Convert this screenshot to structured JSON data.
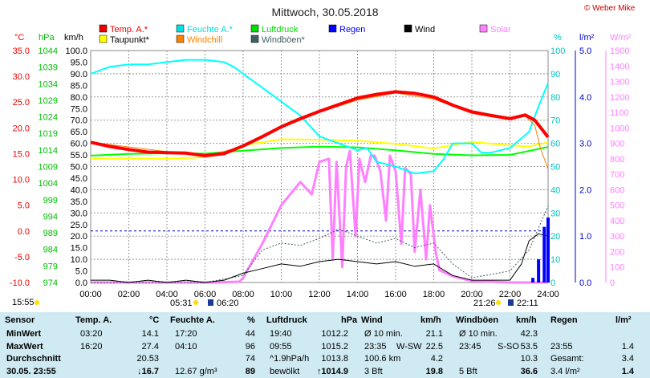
{
  "title": "Mittwoch, 30.05.2018",
  "copyright": "© Weber Mike",
  "colors": {
    "temp": "#ff0000",
    "taupunkt": "#ffff00",
    "feuchte": "#00ffff",
    "windchill": "#ff8000",
    "luftdruck": "#00ff00",
    "windboeen": "#406060",
    "regen": "#0000ff",
    "wind": "#000000",
    "solar": "#ff80ff"
  },
  "legend": [
    {
      "label": "Temp. A.*",
      "color": "#ee0000"
    },
    {
      "label": "Taupunkt*",
      "color": "#ffff00"
    },
    {
      "label": "Feuchte A.*",
      "color": "#00e0e0"
    },
    {
      "label": "Windchill",
      "color": "#ff8000"
    },
    {
      "label": "Luftdruck",
      "color": "#00dd00"
    },
    {
      "label": "Windböen*",
      "color": "#406060"
    },
    {
      "label": "Regen",
      "color": "#0000ff"
    },
    {
      "label": "Wind",
      "color": "#000000"
    },
    {
      "label": "Solar",
      "color": "#ff80ff"
    }
  ],
  "units": {
    "temp": "°C",
    "pressure": "hPa",
    "wind": "km/h",
    "humidity": "%",
    "rain": "l/m²",
    "solar": "W/m²"
  },
  "chart_data": {
    "type": "line",
    "x_ticks": [
      "00:00",
      "02:00",
      "04:00",
      "06:00",
      "08:00",
      "10:00",
      "12:00",
      "14:00",
      "16:00",
      "18:00",
      "20:00",
      "22:00",
      "24:00"
    ],
    "axes": {
      "temp": {
        "ticks": [
          "35.0",
          "30.0",
          "25.0",
          "20.0",
          "15.0",
          "10.0",
          "5.0",
          "0.0",
          "-5.0",
          "-10.0"
        ],
        "lim": [
          -10,
          35
        ]
      },
      "pressure": {
        "ticks": [
          "1044",
          "1039",
          "1034",
          "1029",
          "1024",
          "1019",
          "1014",
          "1009",
          "1004",
          "999",
          "994",
          "989",
          "984",
          "979",
          "974"
        ],
        "lim": [
          974,
          1044
        ]
      },
      "wind": {
        "ticks": [
          "100.0",
          "95.0",
          "90.0",
          "85.0",
          "80.0",
          "75.0",
          "70.0",
          "65.0",
          "60.0",
          "55.0",
          "50.0",
          "45.0",
          "40.0",
          "35.0",
          "30.0",
          "25.0",
          "20.0",
          "15.0",
          "10.0",
          "5.0",
          "0.0"
        ],
        "lim": [
          0,
          100
        ]
      },
      "humidity": {
        "ticks": [
          "100",
          "90",
          "80",
          "70",
          "60",
          "50",
          "40",
          "30",
          "20",
          "10",
          "0"
        ],
        "lim": [
          0,
          100
        ]
      },
      "rain": {
        "ticks": [
          "5.0",
          "4.0",
          "3.0",
          "2.0",
          "1.0",
          "0.0"
        ],
        "lim": [
          0,
          5
        ]
      },
      "solar": {
        "ticks": [
          "1500",
          "1400",
          "1300",
          "1200",
          "1100",
          "1000",
          "900",
          "800",
          "700",
          "600",
          "500",
          "400",
          "300",
          "200",
          "100",
          "0"
        ],
        "lim": [
          0,
          1500
        ]
      }
    },
    "series": [
      {
        "name": "Temp. A.*",
        "key": "temp",
        "axis": "temp",
        "width": 4,
        "points": [
          [
            0,
            17.2
          ],
          [
            1,
            16.4
          ],
          [
            2,
            15.8
          ],
          [
            3,
            15.3
          ],
          [
            4,
            15.2
          ],
          [
            5,
            15.1
          ],
          [
            6,
            14.6
          ],
          [
            7,
            15.0
          ],
          [
            8,
            16.5
          ],
          [
            9,
            18.3
          ],
          [
            10,
            20.2
          ],
          [
            11,
            21.8
          ],
          [
            12,
            23.2
          ],
          [
            13,
            24.5
          ],
          [
            14,
            25.8
          ],
          [
            15,
            26.5
          ],
          [
            16,
            27.0
          ],
          [
            17,
            26.7
          ],
          [
            18,
            26.0
          ],
          [
            19,
            24.4
          ],
          [
            20,
            23.1
          ],
          [
            21,
            22.4
          ],
          [
            22,
            21.8
          ],
          [
            22.8,
            22.5
          ],
          [
            23.3,
            21.5
          ],
          [
            24,
            18.2
          ]
        ]
      },
      {
        "name": "Taupunkt*",
        "key": "taupunkt",
        "axis": "temp",
        "width": 2,
        "points": [
          [
            0,
            14.0
          ],
          [
            2,
            14.1
          ],
          [
            4,
            14.0
          ],
          [
            6,
            14.3
          ],
          [
            7,
            15.0
          ],
          [
            8,
            16.6
          ],
          [
            10,
            17.8
          ],
          [
            12,
            17.7
          ],
          [
            14,
            17.5
          ],
          [
            16,
            16.9
          ],
          [
            18,
            16.0
          ],
          [
            20,
            17.3
          ],
          [
            22,
            16.6
          ],
          [
            23,
            16.4
          ],
          [
            24,
            17.2
          ]
        ]
      },
      {
        "name": "Windchill",
        "key": "windchill",
        "axis": "temp",
        "width": 1,
        "points": [
          [
            0,
            17.2
          ],
          [
            6,
            14.5
          ],
          [
            8,
            16.4
          ],
          [
            10,
            20.0
          ],
          [
            12,
            23.0
          ],
          [
            14,
            25.4
          ],
          [
            16,
            26.8
          ],
          [
            18,
            25.6
          ],
          [
            20,
            22.8
          ],
          [
            22,
            21.6
          ],
          [
            22.8,
            22.3
          ],
          [
            23.3,
            20.5
          ],
          [
            23.6,
            16.0
          ],
          [
            24,
            12.0
          ]
        ]
      },
      {
        "name": "Feuchte A.*",
        "key": "feuchte",
        "axis": "humidity",
        "width": 2,
        "points": [
          [
            0,
            90
          ],
          [
            1,
            93
          ],
          [
            2,
            94
          ],
          [
            3,
            94
          ],
          [
            4,
            95
          ],
          [
            5,
            96
          ],
          [
            6,
            96
          ],
          [
            7,
            95
          ],
          [
            7.5,
            93
          ],
          [
            8,
            90
          ],
          [
            9,
            84
          ],
          [
            10,
            78
          ],
          [
            11,
            72
          ],
          [
            12,
            63
          ],
          [
            13,
            60
          ],
          [
            14,
            57
          ],
          [
            14.5,
            58
          ],
          [
            15,
            52
          ],
          [
            16,
            50
          ],
          [
            17,
            47
          ],
          [
            18,
            48
          ],
          [
            18.5,
            53
          ],
          [
            19,
            60
          ],
          [
            20,
            60
          ],
          [
            20.5,
            56
          ],
          [
            21,
            56
          ],
          [
            22,
            58
          ],
          [
            23,
            65
          ],
          [
            23.5,
            76
          ],
          [
            24,
            86
          ]
        ]
      },
      {
        "name": "Luftdruck",
        "key": "luftdruck",
        "axis": "pressure",
        "width": 2,
        "points": [
          [
            0,
            1012.3
          ],
          [
            2,
            1012.8
          ],
          [
            4,
            1013.0
          ],
          [
            6,
            1012.9
          ],
          [
            8,
            1013.8
          ],
          [
            10,
            1014.6
          ],
          [
            12,
            1015.0
          ],
          [
            14,
            1014.8
          ],
          [
            16,
            1013.9
          ],
          [
            18,
            1012.8
          ],
          [
            20,
            1012.4
          ],
          [
            22,
            1012.5
          ],
          [
            24,
            1014.9
          ]
        ]
      },
      {
        "name": "Windböen*",
        "key": "windboeen",
        "axis": "wind",
        "width": 1,
        "dashed": true,
        "points": [
          [
            0,
            0
          ],
          [
            6,
            0
          ],
          [
            8,
            3
          ],
          [
            9,
            14
          ],
          [
            10,
            17
          ],
          [
            11,
            16
          ],
          [
            12,
            19
          ],
          [
            13,
            23
          ],
          [
            14,
            20
          ],
          [
            15,
            17
          ],
          [
            16,
            19
          ],
          [
            17,
            15
          ],
          [
            18,
            17
          ],
          [
            19,
            8
          ],
          [
            20,
            2
          ],
          [
            22,
            5
          ],
          [
            23,
            14
          ],
          [
            24,
            33
          ]
        ]
      },
      {
        "name": "Wind",
        "key": "wind",
        "axis": "wind",
        "width": 1,
        "points": [
          [
            0,
            1
          ],
          [
            1,
            1
          ],
          [
            2,
            0
          ],
          [
            3,
            1
          ],
          [
            4,
            0
          ],
          [
            5,
            1
          ],
          [
            6,
            0
          ],
          [
            7,
            1
          ],
          [
            8,
            4
          ],
          [
            9,
            6
          ],
          [
            10,
            8
          ],
          [
            11,
            7
          ],
          [
            12,
            9
          ],
          [
            13,
            10
          ],
          [
            14,
            9
          ],
          [
            15,
            8
          ],
          [
            16,
            9
          ],
          [
            17,
            7
          ],
          [
            18,
            8
          ],
          [
            19,
            3
          ],
          [
            20,
            1
          ],
          [
            22,
            1
          ],
          [
            22.6,
            8
          ],
          [
            23,
            18
          ],
          [
            23.5,
            21
          ],
          [
            24,
            20
          ]
        ]
      },
      {
        "name": "Solar",
        "key": "solar",
        "axis": "solar",
        "width": 3,
        "points": [
          [
            0,
            0
          ],
          [
            6.5,
            0
          ],
          [
            7.8,
            5
          ],
          [
            8,
            30
          ],
          [
            9,
            250
          ],
          [
            10,
            500
          ],
          [
            11,
            650
          ],
          [
            11.6,
            570
          ],
          [
            12,
            780
          ],
          [
            12.5,
            800
          ],
          [
            12.7,
            150
          ],
          [
            12.9,
            780
          ],
          [
            13.2,
            100
          ],
          [
            13.4,
            750
          ],
          [
            13.6,
            850
          ],
          [
            13.9,
            300
          ],
          [
            14.1,
            800
          ],
          [
            14.4,
            650
          ],
          [
            14.7,
            820
          ],
          [
            14.9,
            820
          ],
          [
            15.2,
            720
          ],
          [
            15.5,
            400
          ],
          [
            15.7,
            820
          ],
          [
            16,
            720
          ],
          [
            16.3,
            250
          ],
          [
            16.5,
            740
          ],
          [
            16.8,
            700
          ],
          [
            17,
            200
          ],
          [
            17.3,
            600
          ],
          [
            17.6,
            150
          ],
          [
            17.8,
            500
          ],
          [
            18.1,
            200
          ],
          [
            18.3,
            80
          ],
          [
            19,
            40
          ],
          [
            20,
            10
          ],
          [
            21,
            5
          ],
          [
            22,
            0
          ],
          [
            24,
            0
          ]
        ]
      },
      {
        "name": "Regen",
        "key": "regen",
        "axis": "rain",
        "width": 2,
        "points": [
          [
            0,
            0
          ],
          [
            22.8,
            0
          ],
          [
            23.2,
            0.1
          ],
          [
            23.5,
            0.5
          ],
          [
            23.8,
            1.2
          ],
          [
            24,
            1.4
          ]
        ]
      }
    ],
    "markers": [
      "05:31",
      "06:20",
      "21:26",
      "22:11"
    ],
    "frost_line": 0
  },
  "summary": {
    "headers": [
      "Sensor",
      "Temp. A.",
      "°C",
      "Feuchte A.",
      "%",
      "Luftdruck",
      "hPa",
      "Wind",
      "km/h",
      "Windböen",
      "km/h",
      "Regen",
      "l/m²"
    ],
    "row_labels": [
      "MinWert",
      "MaxWert",
      "Durchschnitt",
      "30.05. 23:55"
    ],
    "temp": [
      [
        "03:20",
        "14.1"
      ],
      [
        "16:20",
        "27.4"
      ],
      [
        "",
        "20.53"
      ],
      [
        "",
        "16.7"
      ]
    ],
    "feuchte": [
      [
        "17:20",
        "44"
      ],
      [
        "04:10",
        "96"
      ],
      [
        "",
        "74"
      ],
      [
        "12.67 g/m³",
        "89"
      ]
    ],
    "luftdruck": [
      [
        "19:40",
        "1012.2"
      ],
      [
        "09:55",
        "1015.2"
      ],
      [
        "^1.9hPa/h",
        "1013.8"
      ],
      [
        "bewölkt",
        "1014.9"
      ]
    ],
    "wind": [
      [
        "Ø 10 min.",
        "",
        "21.1"
      ],
      [
        "23:35",
        "W-SW",
        "22.5"
      ],
      [
        "100.6 km",
        "",
        "4.2"
      ],
      [
        "3 Bft",
        "",
        "19.8"
      ]
    ],
    "windboeen": [
      [
        "Ø 10 min.",
        "",
        "42.3"
      ],
      [
        "23:45",
        "S-SO",
        "53.5"
      ],
      [
        "",
        "",
        "10.3"
      ],
      [
        "5 Bft",
        "",
        "36.6"
      ]
    ],
    "regen": [
      [
        "",
        ""
      ],
      [
        "23:55",
        "1.4"
      ],
      [
        "Gesamt:",
        "3.4"
      ],
      [
        "3.4 l/m²",
        "1.4"
      ]
    ]
  }
}
